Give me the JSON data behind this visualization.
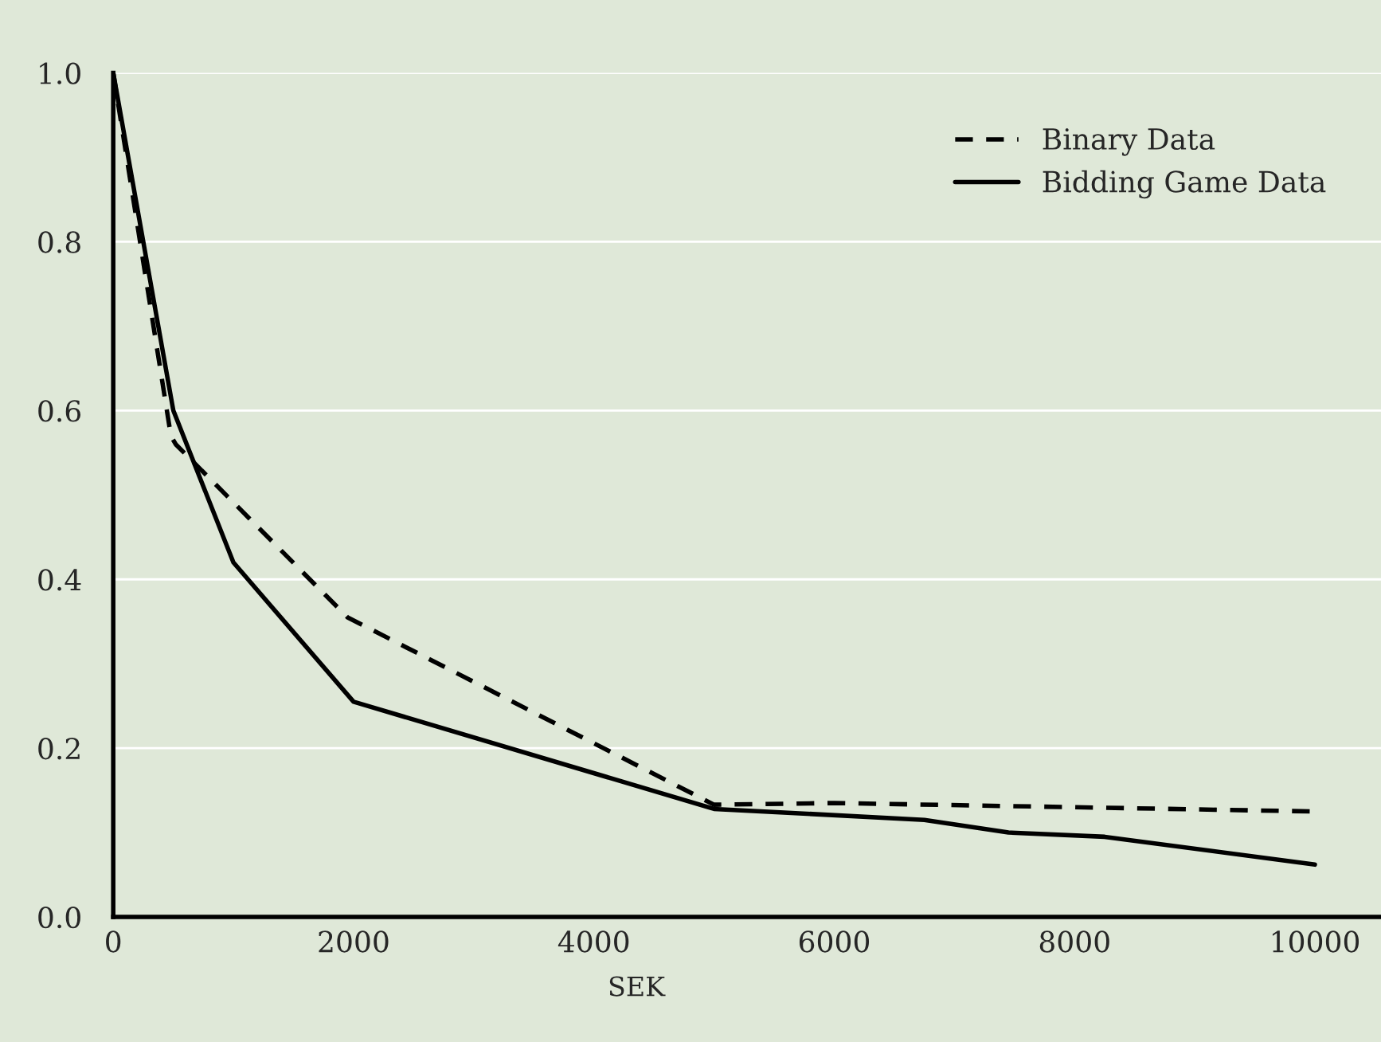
{
  "chart_data": {
    "type": "line",
    "xlabel": "SEK",
    "xlim": [
      0,
      10550
    ],
    "ylim": [
      0,
      1.0
    ],
    "xticks": [
      0,
      2000,
      4000,
      6000,
      8000,
      10000
    ],
    "yticks": [
      {
        "value": 0,
        "label": "0.0"
      },
      0.2,
      0.4,
      0.6,
      0.8,
      {
        "value": 1,
        "label": "1.0"
      }
    ],
    "grid": "y",
    "legend": "top right",
    "series": [
      {
        "name": "Binary Data",
        "color": "#000000",
        "line_style": "dashed",
        "x": [
          0,
          480,
          520,
          1950,
          5000,
          6000,
          10000
        ],
        "values": [
          1.0,
          0.57,
          0.56,
          0.355,
          0.133,
          0.135,
          0.125
        ]
      },
      {
        "name": "Bidding Game Data",
        "color": "#000000",
        "line_style": "solid",
        "x": [
          0,
          500,
          1000,
          2000,
          5000,
          6750,
          7450,
          8250,
          10000
        ],
        "values": [
          1.0,
          0.6,
          0.42,
          0.255,
          0.128,
          0.115,
          0.1,
          0.095,
          0.062
        ]
      }
    ]
  }
}
